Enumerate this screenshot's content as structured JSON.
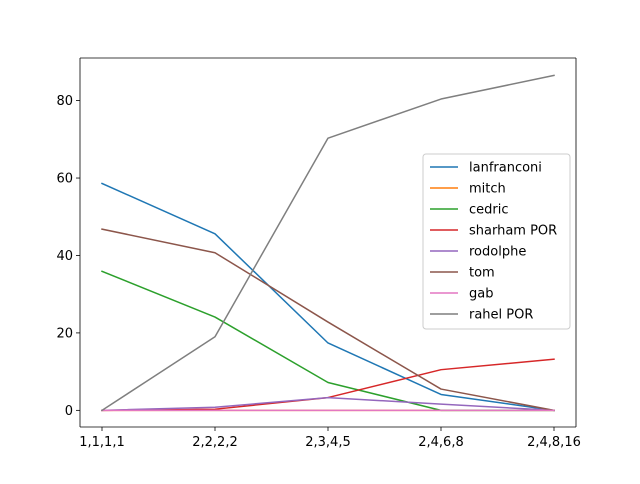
{
  "chart_data": {
    "type": "line",
    "title": "",
    "xlabel": "",
    "ylabel": "",
    "categories": [
      "1,1,1,1",
      "2,2,2,2",
      "2,3,4,5",
      "2,4,6,8",
      "2,4,8,16"
    ],
    "ylim": [
      -4.3,
      91
    ],
    "yticks": [
      0,
      20,
      40,
      60,
      80
    ],
    "grid": false,
    "legend_position": "center-right",
    "series": [
      {
        "name": "lanfranconi",
        "color": "#1f77b4",
        "values": [
          58.6,
          45.6,
          17.4,
          4.1,
          0.0
        ]
      },
      {
        "name": "mitch",
        "color": "#ff7f0e",
        "values": [
          0.0,
          0.0,
          0.0,
          0.0,
          0.0
        ]
      },
      {
        "name": "cedric",
        "color": "#2ca02c",
        "values": [
          35.9,
          24.1,
          7.2,
          0.0,
          0.0
        ]
      },
      {
        "name": "sharham POR",
        "color": "#d62728",
        "values": [
          0.0,
          0.3,
          3.3,
          10.5,
          13.2
        ]
      },
      {
        "name": "rodolphe",
        "color": "#9467bd",
        "values": [
          0.0,
          0.8,
          3.3,
          1.6,
          0.0
        ]
      },
      {
        "name": "tom",
        "color": "#8c564b",
        "values": [
          46.8,
          40.7,
          22.8,
          5.5,
          0.0
        ]
      },
      {
        "name": "gab",
        "color": "#e377c2",
        "values": [
          0.0,
          0.0,
          0.0,
          0.0,
          0.0
        ]
      },
      {
        "name": "rahel POR",
        "color": "#7f7f7f",
        "values": [
          0.0,
          19.0,
          70.3,
          80.4,
          86.5
        ]
      }
    ]
  }
}
